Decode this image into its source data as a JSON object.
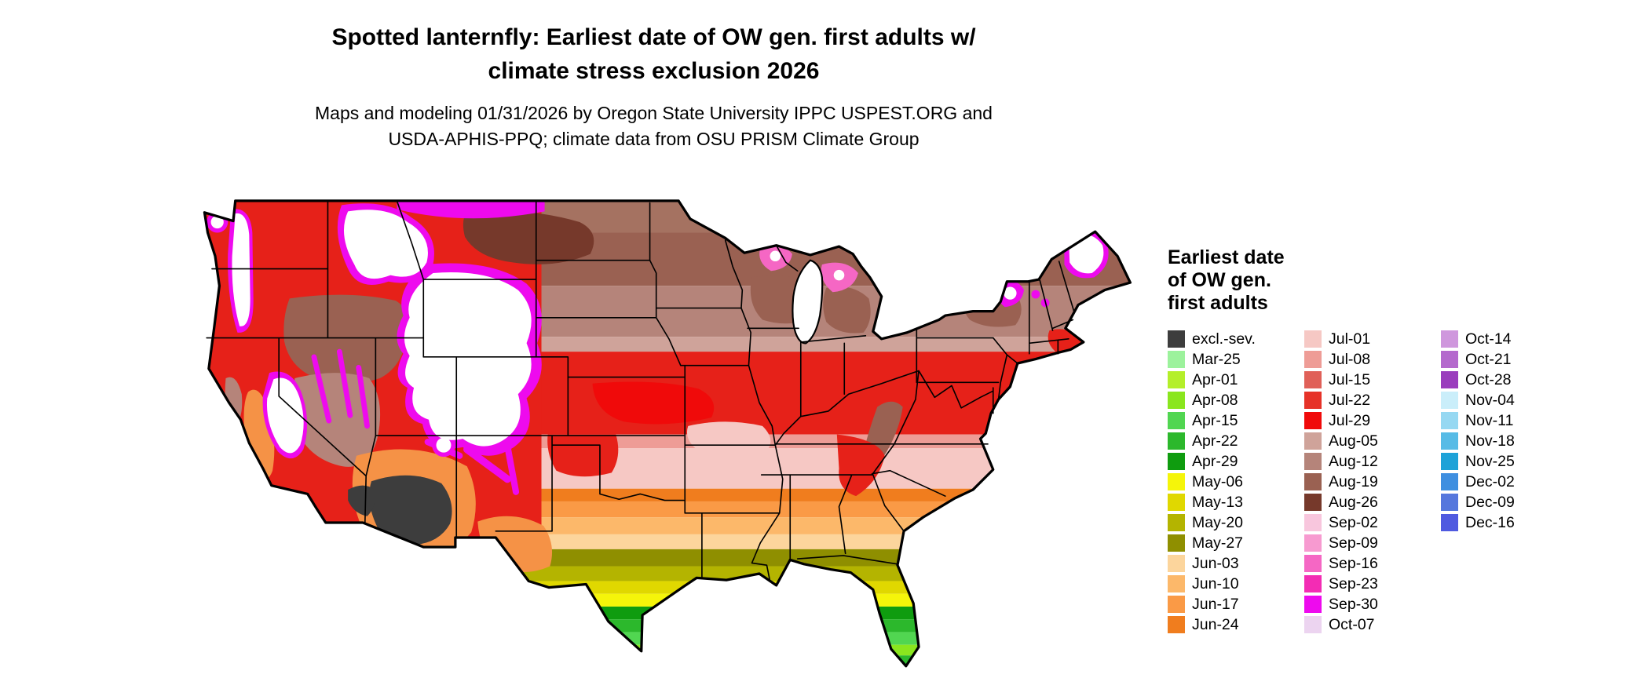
{
  "title": {
    "line1": "Spotted lanternfly: Earliest date of OW gen. first adults w/",
    "line2": "climate stress exclusion 2026"
  },
  "subtitle": {
    "line1": "Maps and modeling 01/31/2026 by Oregon State University IPPC USPEST.ORG and",
    "line2": "USDA-APHIS-PPQ; climate data from OSU PRISM Climate Group"
  },
  "map": {
    "description": "Choropleth raster map of the contiguous United States colored by earliest date of overwintered generation first adults; white areas excluded by climate stress"
  },
  "legend": {
    "title_lines": [
      "Earliest date",
      "of OW gen.",
      "first adults"
    ],
    "columns": [
      {
        "entries": [
          {
            "label": "excl.-sev.",
            "color": "#3d3d3d"
          },
          {
            "label": "Mar-25",
            "color": "#9cf29c"
          },
          {
            "label": "Apr-01",
            "color": "#b4ef2a"
          },
          {
            "label": "Apr-08",
            "color": "#8ae61e"
          },
          {
            "label": "Apr-15",
            "color": "#51d651"
          },
          {
            "label": "Apr-22",
            "color": "#2cb82c"
          },
          {
            "label": "Apr-29",
            "color": "#0f9c0f"
          },
          {
            "label": "May-06",
            "color": "#f5f50a"
          },
          {
            "label": "May-13",
            "color": "#e0d800"
          },
          {
            "label": "May-20",
            "color": "#b4b400"
          },
          {
            "label": "May-27",
            "color": "#8f8f00"
          },
          {
            "label": "Jun-03",
            "color": "#fcd59c"
          },
          {
            "label": "Jun-10",
            "color": "#fcb86a"
          },
          {
            "label": "Jun-17",
            "color": "#fa9a46"
          },
          {
            "label": "Jun-24",
            "color": "#f07d1e"
          }
        ]
      },
      {
        "entries": [
          {
            "label": "Jul-01",
            "color": "#f6c8c4"
          },
          {
            "label": "Jul-08",
            "color": "#ee9c96"
          },
          {
            "label": "Jul-15",
            "color": "#e06058"
          },
          {
            "label": "Jul-22",
            "color": "#e63228"
          },
          {
            "label": "Jul-29",
            "color": "#f00a0a"
          },
          {
            "label": "Aug-05",
            "color": "#cfa39a"
          },
          {
            "label": "Aug-12",
            "color": "#b5847a"
          },
          {
            "label": "Aug-19",
            "color": "#9a6152"
          },
          {
            "label": "Aug-26",
            "color": "#76392b"
          },
          {
            "label": "Sep-02",
            "color": "#f8c6dd"
          },
          {
            "label": "Sep-09",
            "color": "#f79ad0"
          },
          {
            "label": "Sep-16",
            "color": "#f567c4"
          },
          {
            "label": "Sep-23",
            "color": "#f32cb4"
          },
          {
            "label": "Sep-30",
            "color": "#ee0aee"
          },
          {
            "label": "Oct-07",
            "color": "#ecd4f0"
          }
        ]
      },
      {
        "entries": [
          {
            "label": "Oct-14",
            "color": "#cf97dd"
          },
          {
            "label": "Oct-21",
            "color": "#b469cd"
          },
          {
            "label": "Oct-28",
            "color": "#9a3dbd"
          },
          {
            "label": "Nov-04",
            "color": "#caeefa"
          },
          {
            "label": "Nov-11",
            "color": "#96d8f2"
          },
          {
            "label": "Nov-18",
            "color": "#57bbe6"
          },
          {
            "label": "Nov-25",
            "color": "#1ea2d8"
          },
          {
            "label": "Dec-02",
            "color": "#3f8fe0"
          },
          {
            "label": "Dec-09",
            "color": "#5577dd"
          },
          {
            "label": "Dec-16",
            "color": "#4f5ae0"
          }
        ]
      }
    ]
  }
}
